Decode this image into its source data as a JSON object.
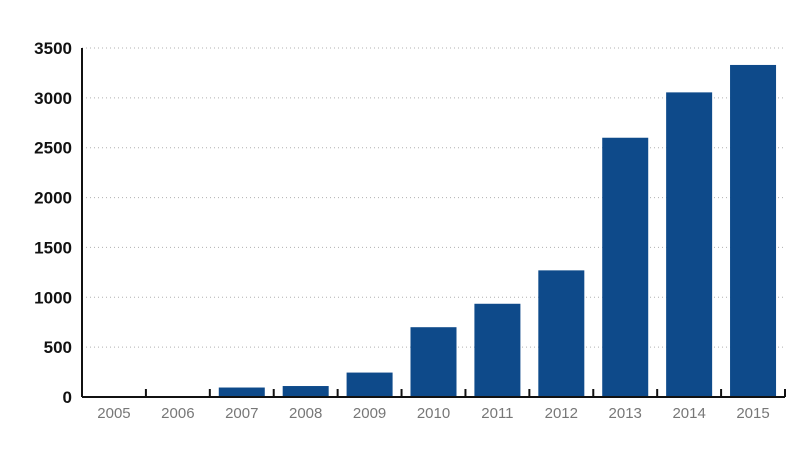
{
  "chart_data": {
    "type": "bar",
    "title": "",
    "xlabel": "",
    "ylabel": "",
    "categories": [
      "2005",
      "2006",
      "2007",
      "2008",
      "2009",
      "2010",
      "2011",
      "2012",
      "2013",
      "2014",
      "2015"
    ],
    "values": [
      5,
      10,
      95,
      110,
      245,
      700,
      935,
      1270,
      2600,
      3055,
      3330
    ],
    "ylim": [
      0,
      3500
    ],
    "yticks": [
      "0",
      "500",
      "1000",
      "1500",
      "2000",
      "2500",
      "3000",
      "3500"
    ],
    "grid": true,
    "legend": "none",
    "bar_color": "#0e4a8a"
  }
}
